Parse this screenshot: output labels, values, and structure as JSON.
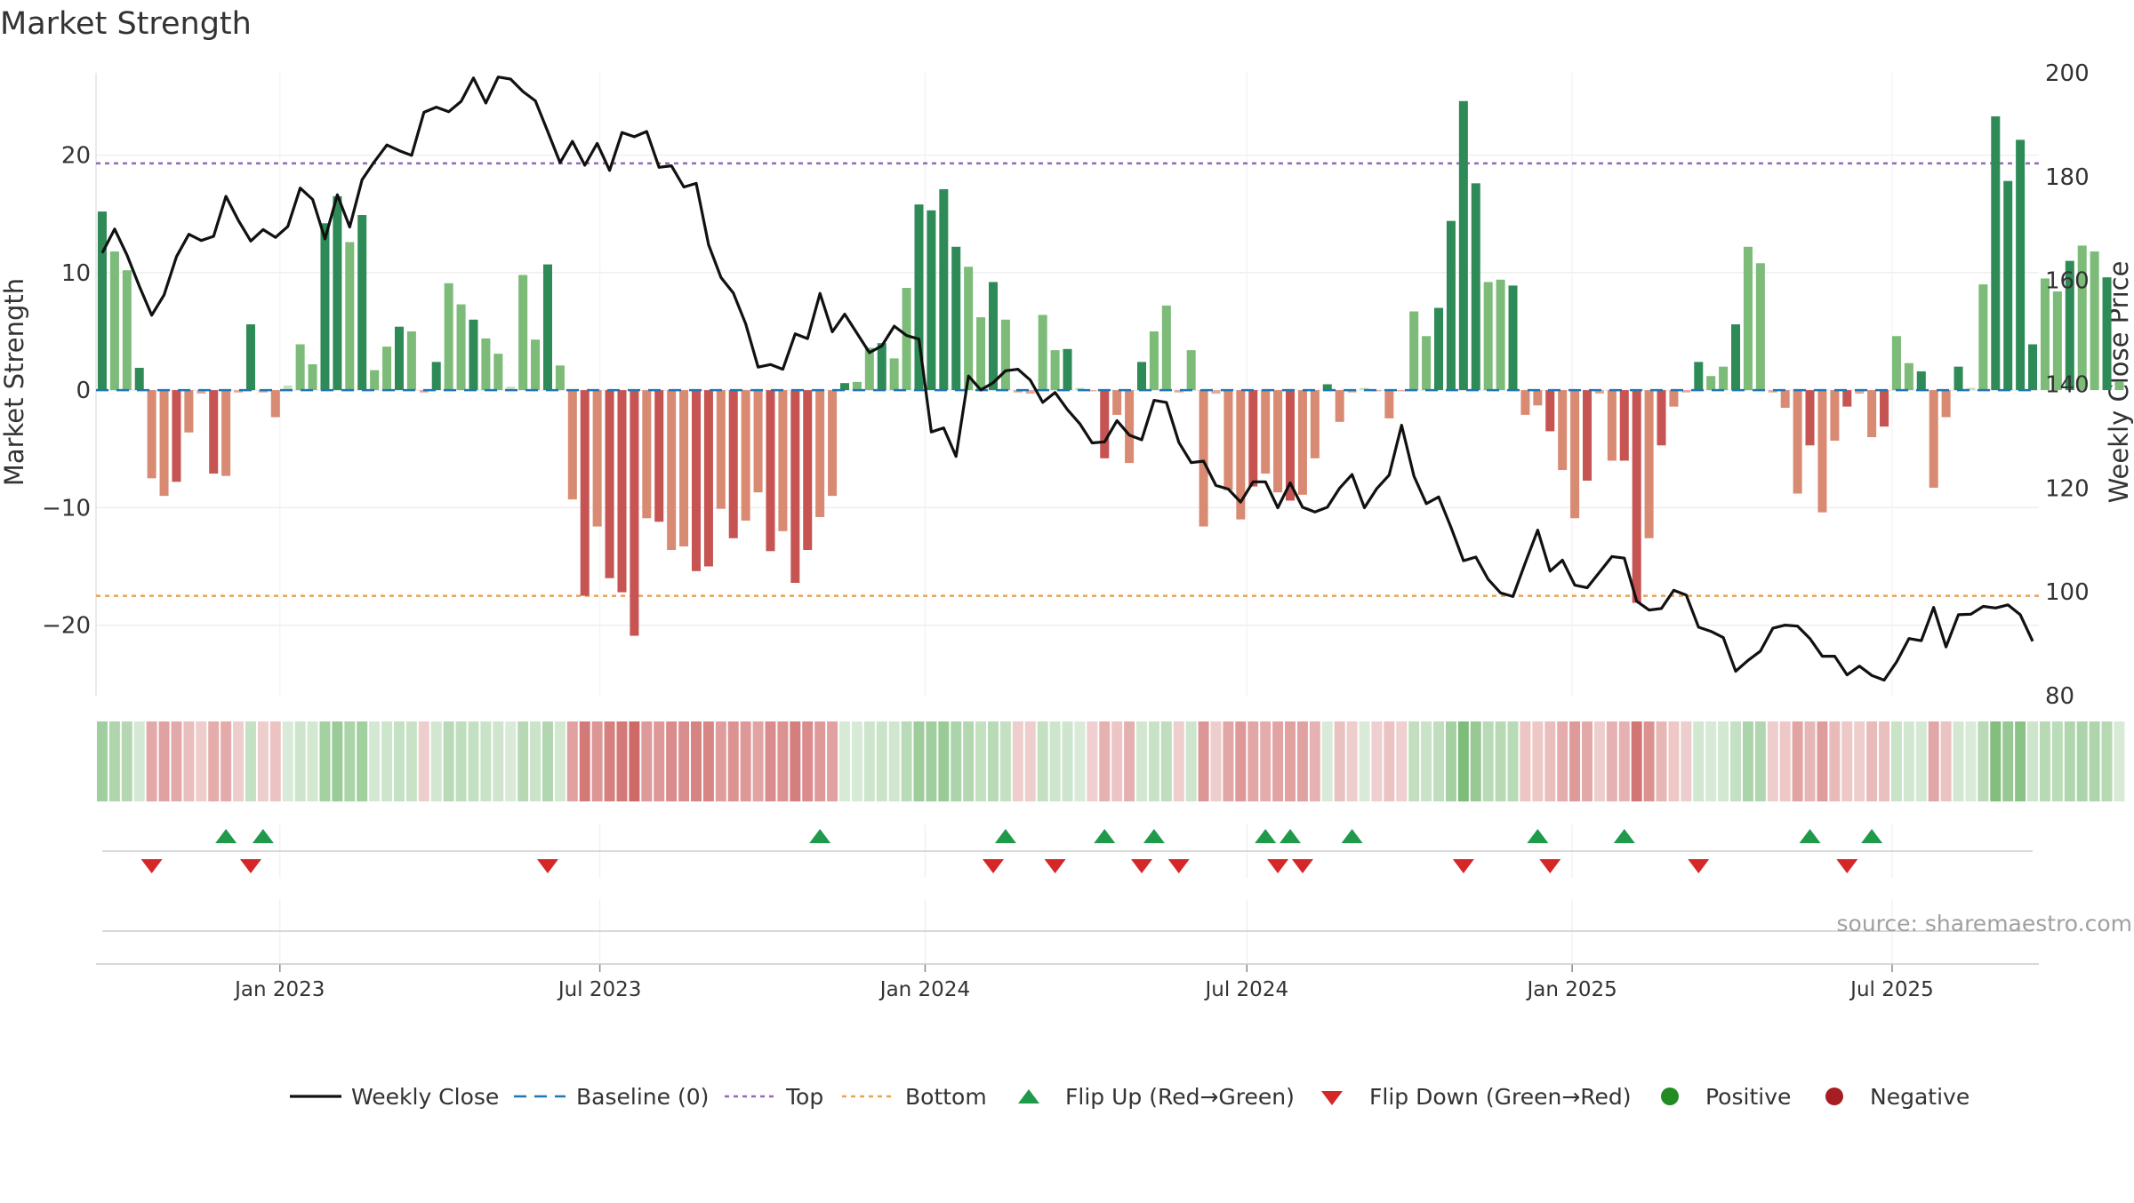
{
  "chart_data": {
    "type": "bar",
    "title": "Market Strength",
    "ylabel": "Market Strength",
    "y2label": "Weekly Close Price",
    "ylim": [
      -26,
      27
    ],
    "y2lim": [
      80,
      200
    ],
    "yticks": [
      20,
      10,
      0,
      -10,
      -20
    ],
    "ytick_labels": [
      "20",
      "10",
      "0",
      "−10",
      "−20"
    ],
    "y2ticks": [
      200,
      180,
      160,
      140,
      120,
      100,
      80
    ],
    "y2tick_labels": [
      "200",
      "180",
      "160",
      "140",
      "120",
      "100",
      "80"
    ],
    "top_level": 19.3,
    "bottom_level": -17.5,
    "baseline": 0,
    "x_range": [
      "2022-09-19",
      "2025-09-22"
    ],
    "x_ticks": [
      {
        "date": "2023-01-01",
        "label": "Jan 2023"
      },
      {
        "date": "2023-07-01",
        "label": "Jul 2023"
      },
      {
        "date": "2024-01-01",
        "label": "Jan 2024"
      },
      {
        "date": "2024-07-01",
        "label": "Jul 2024"
      },
      {
        "date": "2025-01-01",
        "label": "Jan 2025"
      },
      {
        "date": "2025-07-01",
        "label": "Jul 2025"
      }
    ],
    "start_week": "2022-09-19",
    "strength": [
      15.2,
      11.8,
      10.2,
      1.9,
      -7.5,
      -9.0,
      -7.8,
      -3.6,
      -0.3,
      -7.1,
      -7.3,
      -0.2,
      5.6,
      -0.2,
      -2.3,
      0.4,
      3.9,
      2.2,
      14.2,
      16.5,
      12.6,
      14.9,
      1.7,
      3.7,
      5.4,
      5.0,
      -0.2,
      2.4,
      9.1,
      7.3,
      6.0,
      4.4,
      3.1,
      0.3,
      9.8,
      4.3,
      10.7,
      2.1,
      -9.3,
      -17.5,
      -11.6,
      -16.0,
      -17.2,
      -20.9,
      -10.9,
      -11.2,
      -13.6,
      -13.3,
      -15.4,
      -15.0,
      -10.1,
      -12.6,
      -11.1,
      -8.7,
      -13.7,
      -12.0,
      -16.4,
      -13.6,
      -10.8,
      -9.0,
      0.6,
      0.7,
      3.6,
      4.0,
      2.7,
      8.7,
      15.8,
      15.3,
      17.1,
      12.2,
      10.5,
      6.2,
      9.2,
      6.0,
      -0.2,
      -0.3,
      6.4,
      3.4,
      3.5,
      0.2,
      -0.1,
      -5.8,
      -2.1,
      -6.2,
      2.4,
      5.0,
      7.2,
      -0.2,
      3.4,
      -11.6,
      -0.3,
      -8.5,
      -11.0,
      -8.2,
      -7.1,
      -8.7,
      -9.4,
      -8.9,
      -5.8,
      0.5,
      -2.7,
      -0.2,
      0.2,
      -0.1,
      -2.4,
      -0.1,
      6.7,
      4.6,
      7.0,
      14.4,
      24.6,
      17.6,
      9.2,
      9.4,
      8.9,
      -2.1,
      -1.3,
      -3.5,
      -6.8,
      -10.9,
      -7.7,
      -0.3,
      -6.0,
      -6.0,
      -18.1,
      -12.6,
      -4.7,
      -1.4,
      -0.2,
      2.4,
      1.2,
      2.0,
      5.6,
      12.2,
      10.8,
      -0.2,
      -1.5,
      -8.8,
      -4.7,
      -10.4,
      -4.3,
      -1.4,
      -0.3,
      -4.0,
      -3.1,
      4.6,
      2.3,
      1.6,
      -8.3,
      -2.3,
      2.0,
      0.2,
      9.0,
      23.3,
      17.8,
      21.3,
      3.9,
      9.5,
      8.4,
      11.0,
      12.3,
      11.8,
      9.6,
      0.7
    ],
    "strength_hex": [
      "#2e8b57",
      "#7cbb78",
      "#c3e2c0",
      "#e0a89f",
      "#c65452",
      "#d98a73"
    ],
    "strength_meaning": [
      "strong-positive",
      "positive",
      "weak-positive",
      "weak-negative",
      "strong-negative",
      "negative"
    ],
    "close": [
      165.3,
      169.9,
      164.9,
      158.9,
      153.3,
      157.2,
      164.6,
      168.9,
      167.7,
      168.5,
      176.2,
      171.6,
      167.6,
      169.8,
      168.3,
      170.4,
      177.8,
      175.6,
      168.0,
      176.5,
      170.3,
      179.4,
      182.9,
      186.1,
      185.0,
      184.1,
      192.4,
      193.4,
      192.5,
      194.5,
      199.0,
      194.2,
      199.2,
      198.8,
      196.4,
      194.6,
      188.7,
      182.7,
      186.8,
      182.2,
      186.4,
      181.2,
      188.5,
      187.7,
      188.7,
      181.8,
      182.1,
      178.0,
      178.7,
      166.9,
      160.6,
      157.6,
      151.6,
      143.3,
      143.8,
      142.9,
      149.7,
      148.8,
      157.5,
      150.1,
      153.5,
      149.8,
      146.1,
      147.4,
      151.2,
      149.4,
      148.7,
      130.8,
      131.6,
      126.1,
      141.6,
      138.9,
      140.3,
      142.6,
      142.9,
      140.8,
      136.5,
      138.4,
      135.1,
      132.4,
      128.7,
      128.9,
      133.0,
      130.2,
      129.3,
      136.9,
      136.5,
      128.8,
      124.9,
      125.2,
      120.5,
      119.8,
      117.3,
      121.2,
      121.2,
      116.2,
      121.0,
      116.3,
      115.4,
      116.3,
      120.0,
      122.6,
      116.2,
      119.9,
      122.5,
      132.1,
      122.3,
      117.0,
      118.3,
      112.4,
      106.0,
      106.7,
      102.4,
      99.8,
      99.1,
      105.6,
      111.9,
      104.0,
      106.1,
      101.3,
      100.8,
      103.8,
      106.8,
      106.5,
      98.2,
      96.5,
      96.8,
      100.3,
      99.4,
      93.2,
      92.4,
      91.2,
      84.7,
      86.8,
      88.6,
      93.0,
      93.6,
      93.4,
      91.0,
      87.6,
      87.6,
      84.0,
      85.7,
      83.9,
      83.0,
      86.5,
      91.0,
      90.6,
      97.0,
      89.4,
      95.6,
      95.7,
      97.2,
      96.9,
      97.5,
      95.6,
      90.5
    ],
    "weak_level": 5,
    "flip_up_indices": [
      10,
      13,
      58,
      73,
      81,
      85,
      94,
      96,
      101,
      116,
      123,
      138,
      143
    ],
    "flip_down_indices": [
      4,
      12,
      36,
      72,
      77,
      84,
      87,
      95,
      97,
      110,
      117,
      129,
      141
    ],
    "source": "source: sharemaestro.com",
    "legend_position": "bottom-center",
    "legend": [
      {
        "key": "weekly-close",
        "label": "Weekly Close",
        "color": "#111111"
      },
      {
        "key": "baseline",
        "label": "Baseline (0)",
        "color": "#1f77b4"
      },
      {
        "key": "top",
        "label": "Top",
        "color": "#9467bd"
      },
      {
        "key": "bottom",
        "label": "Bottom",
        "color": "#e8a25a"
      },
      {
        "key": "flip-up",
        "label": "Flip Up (Red→Green)",
        "color": "#1f9a4a"
      },
      {
        "key": "flip-down",
        "label": "Flip Down (Green→Red)",
        "color": "#d62728"
      },
      {
        "key": "positive",
        "label": "Positive",
        "color": "#228b22"
      },
      {
        "key": "negative",
        "label": "Negative",
        "color": "#a61e22"
      }
    ]
  }
}
